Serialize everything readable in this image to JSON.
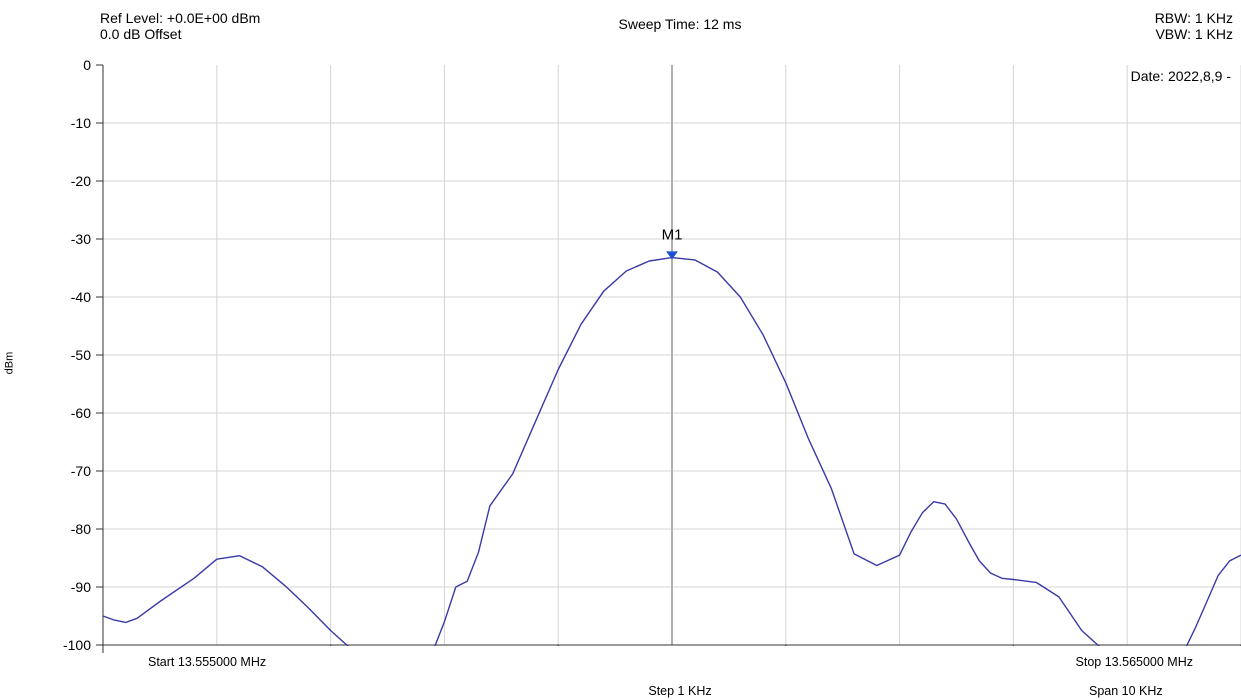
{
  "header": {
    "ref_level": "Ref Level: +0.0E+00 dBm",
    "offset": "0.0 dB Offset",
    "sweep_time": "Sweep Time: 12 ms",
    "rbw": "RBW: 1 KHz",
    "vbw": "VBW: 1 KHz",
    "date": "Date: 2022,8,9 -"
  },
  "footer": {
    "start": "Start 13.555000 MHz",
    "stop": "Stop 13.565000 MHz",
    "step": "Step 1 KHz",
    "span": "Span 10 KHz"
  },
  "chart_data": {
    "type": "line",
    "ylabel": "dBm",
    "xlim": [
      13.555,
      13.565
    ],
    "ylim": [
      -100,
      0
    ],
    "y_ticks": [
      "0",
      "-10",
      "-20",
      "-30",
      "-40",
      "-50",
      "-60",
      "-70",
      "-80",
      "-90",
      "-100"
    ],
    "grid": true,
    "trace_color": "#3a3aa8",
    "grid_color": "#d4d4d4",
    "marker": {
      "label": "M1",
      "x": 13.56,
      "y": -33,
      "color": "#1a4fd6"
    },
    "series": [
      {
        "values_x": [
          13.555,
          13.5551,
          13.5552,
          13.5553,
          13.5555,
          13.5558,
          13.556,
          13.5562,
          13.5564,
          13.5566,
          13.5568,
          13.557,
          13.5572,
          13.5573,
          13.5574,
          13.5575,
          13.5576,
          13.5577,
          13.5579,
          13.558,
          13.5581,
          13.5582,
          13.5583,
          13.5584,
          13.5586,
          13.5588,
          13.559,
          13.5592,
          13.5594,
          13.5596,
          13.5598,
          13.56,
          13.5602,
          13.5604,
          13.5606,
          13.5608,
          13.561,
          13.5612,
          13.5614,
          13.5616,
          13.5618,
          13.562,
          13.5621,
          13.5622,
          13.5623,
          13.5624,
          13.5625,
          13.5626,
          13.5627,
          13.5628,
          13.5629,
          13.563,
          13.5632,
          13.5634,
          13.5636,
          13.5638,
          13.564,
          13.5642,
          13.5644,
          13.5645,
          13.5646,
          13.5647,
          13.5648,
          13.5649,
          13.565
        ],
        "values_y": [
          -95,
          -95.7,
          -96.1,
          -95.4,
          -92.5,
          -88.5,
          -85.2,
          -84.6,
          -86.5,
          -89.8,
          -93.5,
          -97.5,
          -100.5,
          -100.5,
          -100.5,
          -100.5,
          -100.5,
          -100.5,
          -100.5,
          -96,
          -90,
          -89,
          -84,
          -76,
          -70.5,
          -61.5,
          -52.5,
          -44.7,
          -39,
          -35.5,
          -33.8,
          -33.2,
          -33.6,
          -35.7,
          -40,
          -46.5,
          -54.8,
          -64.5,
          -73,
          -84.3,
          -86.3,
          -84.5,
          -80.5,
          -77.2,
          -75.3,
          -75.7,
          -78.3,
          -82,
          -85.5,
          -87.6,
          -88.5,
          -88.7,
          -89.2,
          -91.7,
          -97.5,
          -100.5,
          -100.5,
          -100.5,
          -100.5,
          -100.5,
          -97,
          -92.5,
          -88,
          -85.5,
          -84.5
        ]
      }
    ]
  }
}
